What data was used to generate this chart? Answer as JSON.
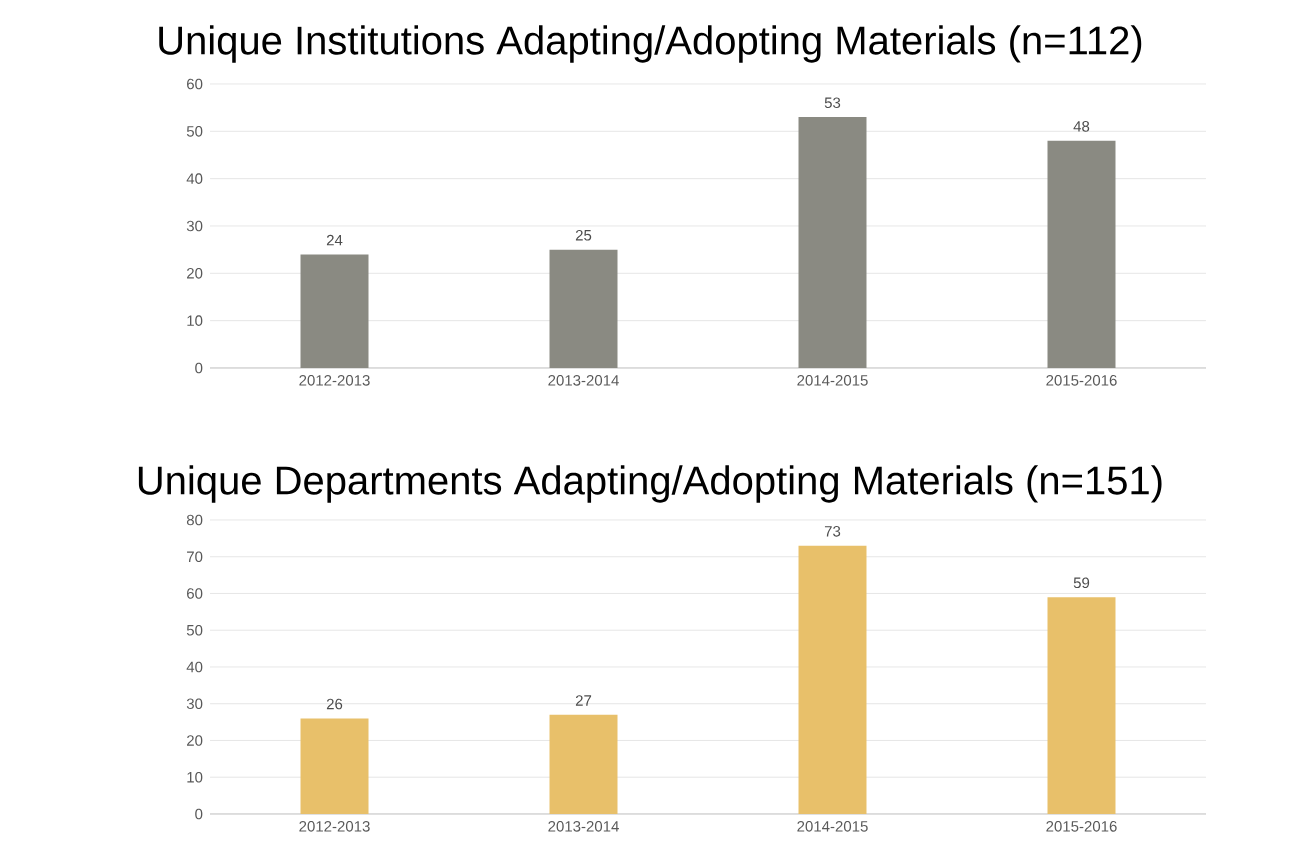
{
  "chart_data": [
    {
      "type": "bar",
      "title": "Unique Institutions Adapting/Adopting Materials (n=112)",
      "categories": [
        "2012-2013",
        "2013-2014",
        "2014-2015",
        "2015-2016"
      ],
      "values": [
        24,
        25,
        53,
        48
      ],
      "color": "#8a8a82",
      "ylim": [
        0,
        60
      ],
      "yticks": [
        0,
        10,
        20,
        30,
        40,
        50,
        60
      ],
      "grid": "y",
      "data_labels": true
    },
    {
      "type": "bar",
      "title": "Unique Departments Adapting/Adopting Materials (n=151)",
      "categories": [
        "2012-2013",
        "2013-2014",
        "2014-2015",
        "2015-2016"
      ],
      "values": [
        26,
        27,
        73,
        59
      ],
      "color": "#e8c06a",
      "ylim": [
        0,
        80
      ],
      "yticks": [
        0,
        10,
        20,
        30,
        40,
        50,
        60,
        70,
        80
      ],
      "grid": "y",
      "data_labels": true
    }
  ]
}
